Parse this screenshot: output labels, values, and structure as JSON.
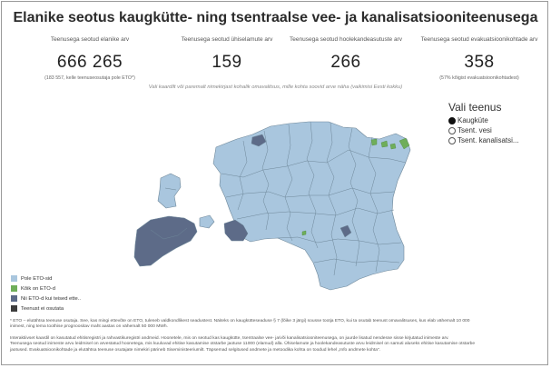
{
  "title": "Elanike seotus kaugkütte- ning tsentraalse vee- ja kanalisatsiooniteenusega",
  "kpis": [
    {
      "label": "Teenusega seotud elanike arv",
      "value": "666 265",
      "note": "(183 557, kelle teenuseosutaja pole ETO*)"
    },
    {
      "label": "Teenusega seotud ühiselamute arv",
      "value": "159",
      "note": ""
    },
    {
      "label": "Teenusega seotud hoolekandeasutuste arv",
      "value": "266",
      "note": ""
    },
    {
      "label": "Teenusega seotud evakuatsioonikohtade arv",
      "value": "358",
      "note": "(57% kõigist evakuatsioonikohtadest)"
    }
  ],
  "hint": "Vali kaardilt või paremalt nimekirjast kohalik omavalitsus, mille kohta soovid arve näha (vaikimisi Eesti kokku)",
  "selector": {
    "title": "Vali teenus",
    "options": [
      {
        "label": "Kaugküte",
        "selected": true
      },
      {
        "label": "Tsent. vesi",
        "selected": false
      },
      {
        "label": "Tsent. kanalisatsi...",
        "selected": false
      }
    ]
  },
  "legend": [
    {
      "label": "Pole ETO-sid",
      "color": "#a9c6de"
    },
    {
      "label": "Kõik on ETO-d",
      "color": "#6fae5a"
    },
    {
      "label": "Nii ETO-d kui teised ette..",
      "color": "#5d6b88"
    },
    {
      "label": "Teenust ei osutata",
      "color": "#3d3d3d"
    }
  ],
  "colors": {
    "region_fill": "#a9c6de",
    "region_border": "#6e8799",
    "eto_mixed": "#5d6b88",
    "eto_all": "#6fae5a"
  },
  "footnotes": [
    "* ETO – elutähtsa teenuse osutaja. See, kas mingi ettevõte on ETO, tuleneb valdkondlikest seadustest. Näiteks on kaugkütteseaduse § 7 (lõike 3 järgi) sousse tootja ETO, kui ta osutab teenust omavalitsuses, kus elab vähemalt 10 000",
    "inimest, ning tema toothise prognoositav maht aastas on vähemalt 50 000 MWh.",
    "Interaktiivset kaardil on kasutatud ehitisregistri ja rahvastikuregistri andmeid. Hoonetele, mis on seotud kas kaugkütte, tsentraalse vee- ja/või kanalisatsiooniteenusega, on juurde lisatud nendesse sisse kirjutatud inimeste arv.",
    "Teenusega seotud inimeste arvu leidmisel on arvestatud hoonetega, mis kuuluvad ehitise kasutamise otstarbe jaotuse 11000 (elamud) alla. Ühiselamute ja hoolekandeasutuste arvu leidmisel on samuti aluseks ehitise kasutamise otstarbe",
    "jaotused. Evakuatsioonikohtade ja elutähtsa teenuse osutajate nimekiri pärineb Siseministeeriumilt. Täpsemad selgitused andmete ja metoodika kohta on toodud lehel „Info andmete kohta\"."
  ]
}
